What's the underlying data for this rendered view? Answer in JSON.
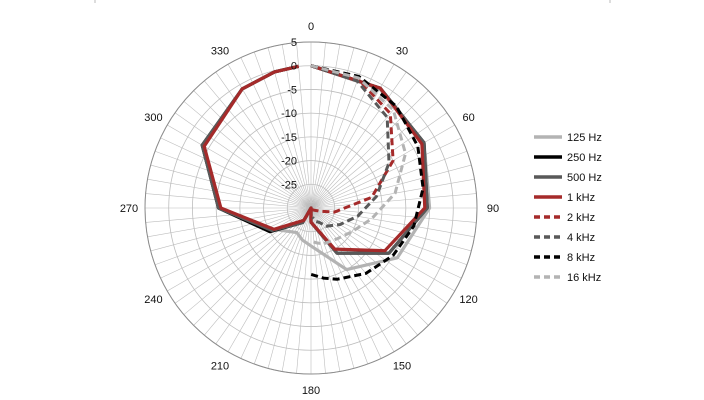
{
  "chart_data": {
    "type": "polar-line",
    "title": "",
    "angle_ticks": [
      "0",
      "30",
      "60",
      "90",
      "120",
      "150",
      "180",
      "210",
      "240",
      "270",
      "300",
      "330"
    ],
    "radial_ticks": [
      "5",
      "0",
      "-5",
      "-10",
      "-15",
      "-20",
      "-25"
    ],
    "rlim": [
      -30,
      5
    ],
    "angle_unit": "degrees",
    "angle_direction": "clockwise",
    "angle_zero": "top",
    "grid": true,
    "legend_position": "right",
    "series": [
      {
        "name": "125 Hz",
        "color": "#b3b3b3",
        "style": "solid",
        "theta": [
          0,
          30,
          60,
          90,
          120,
          150,
          180,
          195,
          210,
          240,
          270,
          300,
          330,
          345,
          355
        ],
        "r": [
          0,
          -1,
          -2.5,
          -5,
          -9,
          -15,
          -22,
          -23,
          -24,
          -21,
          -10.5,
          -4,
          -1,
          -0.3,
          0
        ]
      },
      {
        "name": "250 Hz",
        "color": "#000000",
        "style": "solid",
        "theta": [
          0,
          30,
          60,
          90,
          120,
          150,
          180,
          200,
          210,
          240,
          270,
          300,
          330,
          345,
          355
        ],
        "r": [
          0,
          -0.8,
          -2.5,
          -5.5,
          -11,
          -19,
          -27,
          -30,
          -26.5,
          -20,
          -10.5,
          -3.5,
          -1,
          -0.3,
          0
        ]
      },
      {
        "name": "500 Hz",
        "color": "#595959",
        "style": "solid",
        "theta": [
          0,
          30,
          60,
          90,
          120,
          150,
          180,
          200,
          210,
          240,
          270,
          300,
          330,
          345,
          355
        ],
        "r": [
          0,
          -0.8,
          -2.5,
          -5.5,
          -11,
          -19,
          -27,
          -30,
          -26.5,
          -20.5,
          -10.5,
          -3.5,
          -1,
          -0.3,
          0
        ]
      },
      {
        "name": "1 kHz",
        "color": "#a52a2a",
        "style": "solid",
        "theta": [
          0,
          30,
          60,
          90,
          120,
          150,
          180,
          200,
          210,
          240,
          270,
          300,
          330,
          345,
          355
        ],
        "r": [
          0,
          -0.8,
          -3,
          -6,
          -12,
          -20,
          -27,
          -30,
          -27,
          -21,
          -11,
          -4,
          -1,
          -0.3,
          0
        ]
      },
      {
        "name": "2 kHz",
        "color": "#a52a2a",
        "style": "dashed",
        "theta": [
          0,
          20,
          40,
          60,
          80,
          100,
          110,
          120,
          140,
          150
        ],
        "r": [
          0,
          -1,
          -4,
          -10,
          -17,
          -25,
          -28,
          -29,
          -29.5,
          -30
        ]
      },
      {
        "name": "4 kHz",
        "color": "#595959",
        "style": "dashed",
        "theta": [
          0,
          20,
          40,
          60,
          80,
          100,
          120,
          140,
          150,
          160,
          170
        ],
        "r": [
          0,
          -1.5,
          -5,
          -11,
          -16,
          -20,
          -23,
          -25,
          -26.5,
          -27,
          -28
        ]
      },
      {
        "name": "8 kHz",
        "color": "#000000",
        "style": "dashed",
        "theta": [
          0,
          20,
          40,
          60,
          80,
          100,
          120,
          140,
          160,
          170,
          180
        ],
        "r": [
          0,
          -0.5,
          -2,
          -4,
          -6,
          -8,
          -10,
          -12,
          -14,
          -15,
          -16
        ]
      },
      {
        "name": "16 kHz",
        "color": "#b3b3b3",
        "style": "dashed",
        "theta": [
          0,
          20,
          40,
          60,
          80,
          100,
          120,
          140,
          160,
          170,
          180
        ],
        "r": [
          0,
          -0.8,
          -3,
          -7,
          -12,
          -17,
          -20,
          -21.5,
          -22,
          -22.5,
          -23
        ]
      }
    ]
  }
}
